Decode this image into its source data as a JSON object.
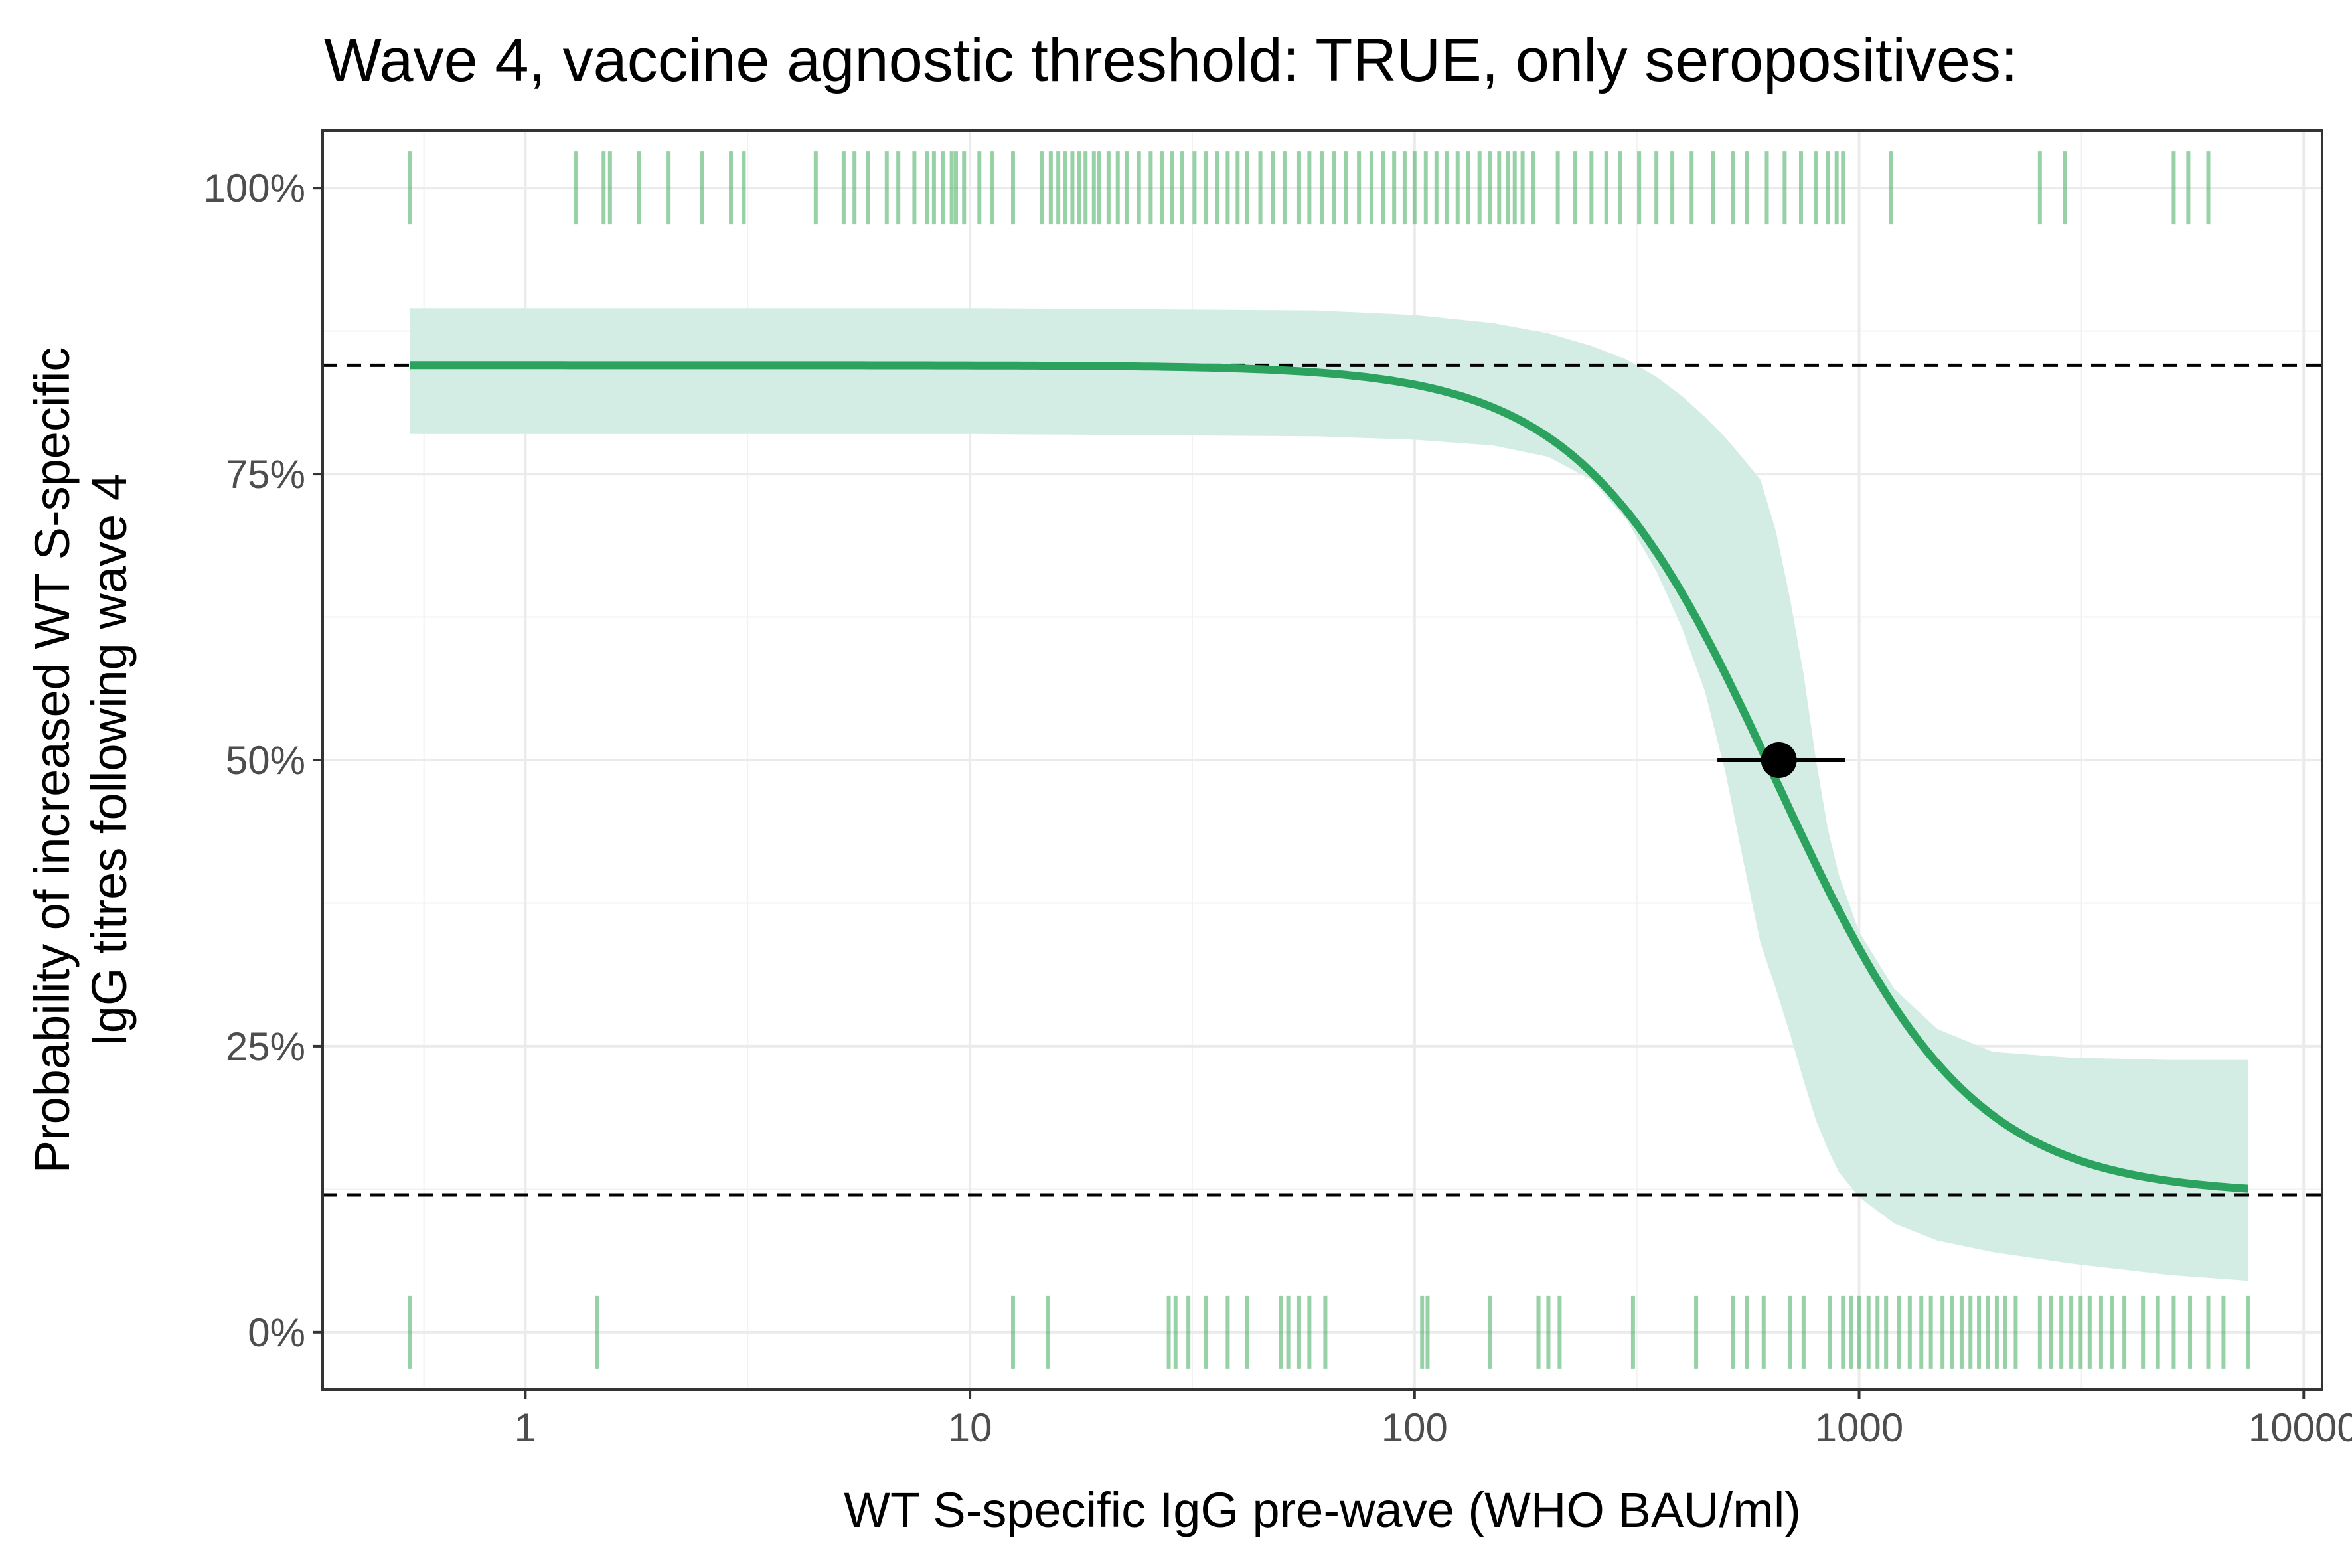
{
  "chart_data": {
    "type": "line",
    "title": "Wave 4, vaccine agnostic threshold: TRUE, only seropositives:",
    "xlabel": "WT S-specific IgG pre-wave (WHO BAU/ml)",
    "ylabel_lines": [
      "Probability of increased WT S-specific",
      "IgG titres following wave 4"
    ],
    "x_scale": "log10",
    "xlim": [
      0.35,
      11000
    ],
    "ylim": [
      -0.05,
      1.05
    ],
    "x_ticks": [
      1,
      10,
      100,
      1000,
      10000
    ],
    "x_tick_labels": [
      "1",
      "10",
      "100",
      "1000",
      "10000"
    ],
    "y_ticks": [
      0,
      0.25,
      0.5,
      0.75,
      1
    ],
    "y_tick_labels": [
      "0%",
      "25%",
      "50%",
      "75%",
      "100%"
    ],
    "grid": true,
    "colors": {
      "curve": "#2ca25f",
      "ribbon": "#d4ede4",
      "rug": "#41ab5d",
      "reference": "#000000",
      "point": "#000000"
    },
    "curve": {
      "x_min": 0.55,
      "x_max": 7500,
      "lower_asymptote": 0.12,
      "upper_asymptote": 0.845,
      "midpoint_x": 650,
      "slope_log10": 4.6
    },
    "ribbon": {
      "x": [
        0.55,
        1,
        10,
        60,
        100,
        150,
        200,
        250,
        300,
        350,
        400,
        450,
        500,
        550,
        600,
        650,
        700,
        750,
        800,
        850,
        900,
        1000,
        1200,
        1500,
        2000,
        3000,
        5000,
        7500
      ],
      "upper": [
        0.895,
        0.895,
        0.895,
        0.893,
        0.889,
        0.882,
        0.873,
        0.862,
        0.85,
        0.835,
        0.818,
        0.8,
        0.782,
        0.763,
        0.745,
        0.7,
        0.64,
        0.575,
        0.5,
        0.44,
        0.4,
        0.35,
        0.3,
        0.265,
        0.245,
        0.24,
        0.238,
        0.238
      ],
      "lower": [
        0.785,
        0.785,
        0.785,
        0.783,
        0.78,
        0.775,
        0.765,
        0.745,
        0.71,
        0.665,
        0.615,
        0.56,
        0.49,
        0.41,
        0.34,
        0.3,
        0.26,
        0.22,
        0.185,
        0.16,
        0.14,
        0.118,
        0.095,
        0.08,
        0.07,
        0.06,
        0.05,
        0.045
      ]
    },
    "reference_lines_y": [
      0.845,
      0.12
    ],
    "midpoint_estimate": {
      "x": 660,
      "y": 0.5,
      "ci": [
        480,
        930
      ]
    },
    "rug_top_x": [
      0.55,
      1.3,
      1.5,
      1.55,
      1.8,
      2.1,
      2.5,
      2.9,
      3.1,
      4.5,
      5.2,
      5.5,
      5.9,
      6.5,
      6.9,
      7.5,
      8.0,
      8.3,
      8.7,
      9.1,
      9.3,
      9.7,
      10.5,
      11.2,
      12.5,
      14.5,
      15.2,
      15.8,
      16.4,
      17.0,
      17.6,
      18.2,
      19.0,
      19.5,
      20.5,
      21.5,
      22.5,
      24.0,
      25.5,
      27.0,
      28.5,
      30.0,
      32.0,
      34.0,
      36.0,
      38.0,
      40.0,
      42.0,
      45.0,
      48.0,
      51.0,
      55.0,
      58.0,
      62.0,
      66.0,
      70.0,
      75.0,
      80.0,
      85.0,
      90.0,
      95.0,
      100.0,
      106.0,
      112.0,
      118.0,
      125.0,
      132.0,
      140.0,
      148.0,
      155.0,
      162.0,
      168.0,
      175.0,
      185.0,
      210.0,
      230.0,
      250.0,
      270.0,
      290.0,
      320.0,
      350.0,
      380.0,
      420.0,
      470.0,
      520.0,
      560.0,
      620.0,
      680.0,
      740.0,
      800.0,
      850.0,
      890.0,
      920.0,
      1180.0,
      2550.0,
      2900.0,
      5100.0,
      5500.0,
      6100.0
    ],
    "rug_bottom_x": [
      0.55,
      1.45,
      12.5,
      15.0,
      28.0,
      29.0,
      31.0,
      34.0,
      38.0,
      42.0,
      50.0,
      52.0,
      55.0,
      58.0,
      63.0,
      104.0,
      107.0,
      148.0,
      190.0,
      200.0,
      212.0,
      310.0,
      430.0,
      520.0,
      560.0,
      610.0,
      700.0,
      750.0,
      860.0,
      920.0,
      960.0,
      1000.0,
      1050.0,
      1100.0,
      1150.0,
      1230.0,
      1300.0,
      1380.0,
      1450.0,
      1540.0,
      1620.0,
      1700.0,
      1780.0,
      1860.0,
      1950.0,
      2040.0,
      2130.0,
      2250.0,
      2550.0,
      2700.0,
      2850.0,
      3000.0,
      3150.0,
      3300.0,
      3500.0,
      3700.0,
      3950.0,
      4350.0,
      4700.0,
      5100.0,
      5550.0,
      6100.0,
      6600.0,
      7500.0
    ]
  }
}
